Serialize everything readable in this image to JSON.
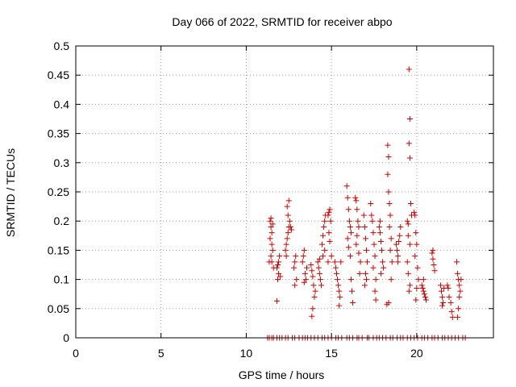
{
  "chart_data": {
    "type": "scatter",
    "title": "Day 066 of 2022, SRMTID for receiver abpo",
    "xlabel": "GPS time / hours",
    "ylabel": "SRMTID / TECUs",
    "xlim": [
      0,
      24.5
    ],
    "ylim": [
      0,
      0.5
    ],
    "xticks": [
      0,
      5,
      10,
      15,
      20
    ],
    "xtick_labels": [
      "0",
      "5",
      "10",
      "15",
      "20"
    ],
    "yticks": [
      0,
      0.05,
      0.1,
      0.15,
      0.2,
      0.25,
      0.3,
      0.35,
      0.4,
      0.45,
      0.5
    ],
    "ytick_labels": [
      "0",
      "0.05",
      "0.1",
      "0.15",
      "0.2",
      "0.25",
      "0.3",
      "0.35",
      "0.4",
      "0.45",
      "0.5"
    ],
    "grid": true,
    "marker": "+",
    "color": "#d40000",
    "series": [
      {
        "name": "SRMTID",
        "points": [
          [
            11.25,
            0.0
          ],
          [
            11.35,
            0.0
          ],
          [
            11.5,
            0.0
          ],
          [
            11.6,
            0.0
          ],
          [
            11.8,
            0.0
          ],
          [
            11.95,
            0.0
          ],
          [
            12.1,
            0.0
          ],
          [
            12.3,
            0.0
          ],
          [
            12.45,
            0.0
          ],
          [
            12.7,
            0.0
          ],
          [
            12.85,
            0.0
          ],
          [
            13.1,
            0.0
          ],
          [
            13.3,
            0.0
          ],
          [
            13.45,
            0.0
          ],
          [
            13.6,
            0.0
          ],
          [
            13.8,
            0.0
          ],
          [
            14.0,
            0.0
          ],
          [
            14.2,
            0.0
          ],
          [
            14.45,
            0.0
          ],
          [
            14.6,
            0.0
          ],
          [
            14.8,
            0.0
          ],
          [
            15.0,
            0.0
          ],
          [
            15.25,
            0.0
          ],
          [
            15.4,
            0.0
          ],
          [
            15.6,
            0.0
          ],
          [
            15.9,
            0.0
          ],
          [
            16.05,
            0.0
          ],
          [
            16.25,
            0.0
          ],
          [
            16.5,
            0.0
          ],
          [
            16.6,
            0.0
          ],
          [
            16.8,
            0.0
          ],
          [
            17.1,
            0.0
          ],
          [
            17.2,
            0.0
          ],
          [
            17.45,
            0.0
          ],
          [
            17.65,
            0.0
          ],
          [
            17.8,
            0.0
          ],
          [
            18.0,
            0.0
          ],
          [
            18.2,
            0.0
          ],
          [
            18.45,
            0.0
          ],
          [
            18.6,
            0.0
          ],
          [
            18.85,
            0.0
          ],
          [
            19.05,
            0.0
          ],
          [
            19.2,
            0.0
          ],
          [
            19.45,
            0.0
          ],
          [
            19.65,
            0.0
          ],
          [
            19.85,
            0.0
          ],
          [
            20.05,
            0.0
          ],
          [
            20.3,
            0.0
          ],
          [
            20.45,
            0.0
          ],
          [
            20.65,
            0.0
          ],
          [
            20.9,
            0.0
          ],
          [
            21.05,
            0.0
          ],
          [
            21.25,
            0.0
          ],
          [
            21.5,
            0.0
          ],
          [
            21.65,
            0.0
          ],
          [
            21.85,
            0.0
          ],
          [
            22.05,
            0.0
          ],
          [
            22.25,
            0.0
          ],
          [
            22.45,
            0.0
          ],
          [
            22.7,
            0.0
          ],
          [
            22.85,
            0.0
          ],
          [
            11.4,
            0.2
          ],
          [
            11.45,
            0.19
          ],
          [
            11.5,
            0.18
          ],
          [
            11.4,
            0.17
          ],
          [
            11.5,
            0.16
          ],
          [
            11.55,
            0.15
          ],
          [
            11.45,
            0.14
          ],
          [
            11.5,
            0.13
          ],
          [
            11.35,
            0.13
          ],
          [
            11.6,
            0.12
          ],
          [
            11.55,
            0.195
          ],
          [
            11.45,
            0.205
          ],
          [
            11.8,
            0.063
          ],
          [
            11.85,
            0.1
          ],
          [
            11.9,
            0.11
          ],
          [
            11.8,
            0.12
          ],
          [
            11.9,
            0.13
          ],
          [
            11.95,
            0.14
          ],
          [
            11.85,
            0.125
          ],
          [
            12.0,
            0.105
          ],
          [
            12.3,
            0.15
          ],
          [
            12.35,
            0.16
          ],
          [
            12.4,
            0.17
          ],
          [
            12.45,
            0.18
          ],
          [
            12.5,
            0.19
          ],
          [
            12.55,
            0.2
          ],
          [
            12.45,
            0.21
          ],
          [
            12.4,
            0.225
          ],
          [
            12.5,
            0.235
          ],
          [
            12.6,
            0.19
          ],
          [
            12.65,
            0.185
          ],
          [
            12.35,
            0.14
          ],
          [
            12.8,
            0.12
          ],
          [
            12.85,
            0.13
          ],
          [
            12.9,
            0.14
          ],
          [
            12.95,
            0.1
          ],
          [
            12.85,
            0.09
          ],
          [
            13.3,
            0.13
          ],
          [
            13.35,
            0.14
          ],
          [
            13.4,
            0.15
          ],
          [
            13.45,
            0.11
          ],
          [
            13.5,
            0.1
          ],
          [
            13.55,
            0.12
          ],
          [
            13.4,
            0.095
          ],
          [
            13.8,
            0.125
          ],
          [
            13.85,
            0.115
          ],
          [
            13.9,
            0.105
          ],
          [
            13.95,
            0.09
          ],
          [
            14.0,
            0.07
          ],
          [
            13.9,
            0.05
          ],
          [
            13.85,
            0.037
          ],
          [
            14.05,
            0.08
          ],
          [
            14.2,
            0.13
          ],
          [
            14.25,
            0.12
          ],
          [
            14.3,
            0.11
          ],
          [
            14.35,
            0.1
          ],
          [
            14.4,
            0.09
          ],
          [
            14.3,
            0.135
          ],
          [
            14.45,
            0.16
          ],
          [
            14.5,
            0.175
          ],
          [
            14.55,
            0.19
          ],
          [
            14.6,
            0.2
          ],
          [
            14.65,
            0.21
          ],
          [
            14.6,
            0.15
          ],
          [
            14.5,
            0.14
          ],
          [
            14.8,
            0.21
          ],
          [
            14.85,
            0.215
          ],
          [
            14.9,
            0.22
          ],
          [
            14.95,
            0.2
          ],
          [
            14.85,
            0.18
          ],
          [
            14.9,
            0.165
          ],
          [
            15.0,
            0.14
          ],
          [
            14.8,
            0.13
          ],
          [
            15.2,
            0.13
          ],
          [
            15.25,
            0.12
          ],
          [
            15.3,
            0.11
          ],
          [
            15.35,
            0.1
          ],
          [
            15.4,
            0.09
          ],
          [
            15.45,
            0.08
          ],
          [
            15.5,
            0.07
          ],
          [
            15.45,
            0.055
          ],
          [
            15.55,
            0.13
          ],
          [
            15.9,
            0.26
          ],
          [
            15.95,
            0.24
          ],
          [
            16.0,
            0.22
          ],
          [
            16.05,
            0.2
          ],
          [
            16.1,
            0.19
          ],
          [
            16.15,
            0.18
          ],
          [
            15.95,
            0.17
          ],
          [
            16.0,
            0.155
          ],
          [
            16.1,
            0.14
          ],
          [
            16.2,
            0.08
          ],
          [
            16.25,
            0.06
          ],
          [
            16.15,
            0.1
          ],
          [
            16.4,
            0.24
          ],
          [
            16.45,
            0.235
          ],
          [
            16.5,
            0.22
          ],
          [
            16.55,
            0.2
          ],
          [
            16.6,
            0.19
          ],
          [
            16.5,
            0.175
          ],
          [
            16.45,
            0.16
          ],
          [
            16.6,
            0.145
          ],
          [
            16.7,
            0.13
          ],
          [
            16.65,
            0.11
          ],
          [
            16.9,
            0.21
          ],
          [
            16.95,
            0.19
          ],
          [
            17.0,
            0.17
          ],
          [
            17.05,
            0.15
          ],
          [
            17.1,
            0.13
          ],
          [
            17.0,
            0.11
          ],
          [
            17.05,
            0.1
          ],
          [
            16.95,
            0.09
          ],
          [
            17.3,
            0.23
          ],
          [
            17.35,
            0.21
          ],
          [
            17.4,
            0.2
          ],
          [
            17.45,
            0.18
          ],
          [
            17.5,
            0.16
          ],
          [
            17.55,
            0.14
          ],
          [
            17.45,
            0.12
          ],
          [
            17.6,
            0.1
          ],
          [
            17.55,
            0.08
          ],
          [
            17.6,
            0.065
          ],
          [
            17.8,
            0.19
          ],
          [
            17.85,
            0.18
          ],
          [
            17.9,
            0.165
          ],
          [
            17.95,
            0.15
          ],
          [
            18.0,
            0.13
          ],
          [
            18.05,
            0.12
          ],
          [
            17.9,
            0.11
          ],
          [
            17.85,
            0.2
          ],
          [
            18.3,
            0.33
          ],
          [
            18.35,
            0.31
          ],
          [
            18.3,
            0.28
          ],
          [
            18.35,
            0.25
          ],
          [
            18.4,
            0.23
          ],
          [
            18.45,
            0.21
          ],
          [
            18.4,
            0.19
          ],
          [
            18.5,
            0.17
          ],
          [
            18.45,
            0.15
          ],
          [
            18.55,
            0.13
          ],
          [
            18.5,
            0.1
          ],
          [
            18.35,
            0.06
          ],
          [
            18.25,
            0.057
          ],
          [
            18.8,
            0.16
          ],
          [
            18.85,
            0.15
          ],
          [
            18.9,
            0.14
          ],
          [
            18.95,
            0.165
          ],
          [
            19.0,
            0.175
          ],
          [
            19.05,
            0.19
          ],
          [
            18.9,
            0.13
          ],
          [
            19.45,
            0.2
          ],
          [
            19.5,
            0.195
          ],
          [
            19.55,
            0.46
          ],
          [
            19.6,
            0.375
          ],
          [
            19.55,
            0.333
          ],
          [
            19.6,
            0.308
          ],
          [
            19.65,
            0.23
          ],
          [
            19.7,
            0.21
          ],
          [
            19.5,
            0.175
          ],
          [
            19.6,
            0.16
          ],
          [
            19.45,
            0.13
          ],
          [
            19.5,
            0.11
          ],
          [
            19.6,
            0.09
          ],
          [
            19.55,
            0.08
          ],
          [
            19.85,
            0.215
          ],
          [
            19.9,
            0.21
          ],
          [
            19.95,
            0.18
          ],
          [
            20.0,
            0.16
          ],
          [
            19.9,
            0.14
          ],
          [
            20.05,
            0.12
          ],
          [
            20.1,
            0.1
          ],
          [
            20.0,
            0.085
          ],
          [
            19.95,
            0.065
          ],
          [
            20.3,
            0.09
          ],
          [
            20.35,
            0.085
          ],
          [
            20.4,
            0.08
          ],
          [
            20.45,
            0.075
          ],
          [
            20.5,
            0.07
          ],
          [
            20.55,
            0.065
          ],
          [
            20.4,
            0.1
          ],
          [
            20.9,
            0.145
          ],
          [
            20.95,
            0.135
          ],
          [
            21.0,
            0.125
          ],
          [
            21.05,
            0.115
          ],
          [
            20.95,
            0.15
          ],
          [
            21.4,
            0.09
          ],
          [
            21.45,
            0.08
          ],
          [
            21.5,
            0.07
          ],
          [
            21.55,
            0.06
          ],
          [
            21.5,
            0.055
          ],
          [
            21.6,
            0.085
          ],
          [
            21.8,
            0.09
          ],
          [
            21.85,
            0.085
          ],
          [
            21.9,
            0.07
          ],
          [
            22.0,
            0.06
          ],
          [
            22.05,
            0.045
          ],
          [
            22.1,
            0.035
          ],
          [
            22.35,
            0.13
          ],
          [
            22.4,
            0.11
          ],
          [
            22.45,
            0.1
          ],
          [
            22.5,
            0.09
          ],
          [
            22.55,
            0.08
          ],
          [
            22.5,
            0.07
          ],
          [
            22.45,
            0.05
          ],
          [
            22.4,
            0.035
          ],
          [
            22.6,
            0.1
          ]
        ]
      }
    ]
  }
}
